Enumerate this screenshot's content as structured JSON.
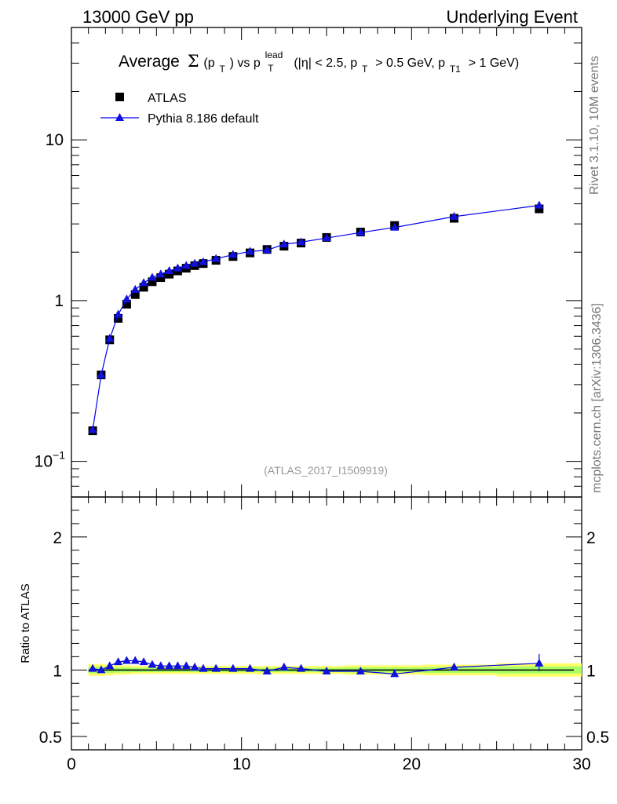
{
  "header": {
    "left": "13000 GeV pp",
    "right": "Underlying Event"
  },
  "side_labels": {
    "rivet": "Rivet 3.1.10,  10M events",
    "mcplots": "mcplots.cern.ch [arXiv:1306.3436]"
  },
  "title_parts": {
    "average": "Average",
    "sigma": "Σ",
    "pt": "(p",
    "t": "T",
    "vs": ") vs p",
    "lead": "lead",
    "lead_t": "T",
    "cuts_a": "(|η| < 2.5, p",
    "cuts_t": "T",
    "cuts_b": "> 0.5 GeV, p",
    "cuts_t1": "T1",
    "cuts_c": "> 1 GeV)"
  },
  "watermark": "(ATLAS_2017_I1509919)",
  "colors": {
    "data": "#000000",
    "mc": "#0000ee",
    "mc_marker": "#1111dd",
    "band_outer": "#ffff66",
    "band_inner": "#aaff66",
    "ratio_ref": "#009900",
    "side_text": "#777777"
  },
  "chart_data": {
    "type": "scatter",
    "title": "Average Σ(pT) vs pT lead (|η| < 2.5, pT > 0.5 GeV, pT1 > 1 GeV)",
    "xlabel": "",
    "ylabel": "",
    "ratio_ylabel": "Ratio to ATLAS",
    "xlim": [
      0,
      30
    ],
    "ylim": [
      0.06,
      50
    ],
    "ylog": true,
    "ratio_ylim": [
      0.4,
      2.3
    ],
    "x_ticks": [
      "0",
      "10",
      "20",
      "30"
    ],
    "y_ticks": [
      {
        "value": 0.1,
        "label": "10",
        "sup": "−1"
      },
      {
        "value": 1,
        "label": "1",
        "sup": ""
      },
      {
        "value": 10,
        "label": "10",
        "sup": ""
      }
    ],
    "ratio_ticks": [
      {
        "value": 0.5,
        "label": "0.5"
      },
      {
        "value": 1,
        "label": "1"
      },
      {
        "value": 2,
        "label": "2"
      }
    ],
    "legend": {
      "position": "top-left"
    },
    "x": [
      1.25,
      1.75,
      2.25,
      2.75,
      3.25,
      3.75,
      4.25,
      4.75,
      5.25,
      5.75,
      6.25,
      6.75,
      7.25,
      7.75,
      8.5,
      9.5,
      10.5,
      11.5,
      12.5,
      13.5,
      15.0,
      17.0,
      19.0,
      22.5,
      27.5
    ],
    "series": [
      {
        "name": "ATLAS",
        "marker": "square",
        "values": [
          0.155,
          0.345,
          0.57,
          0.775,
          0.95,
          1.09,
          1.21,
          1.31,
          1.39,
          1.46,
          1.53,
          1.59,
          1.65,
          1.7,
          1.78,
          1.88,
          1.98,
          2.08,
          2.18,
          2.28,
          2.47,
          2.67,
          2.93,
          3.25,
          3.72
        ],
        "ratio_band": [
          0.045,
          0.045,
          0.04,
          0.035,
          0.035,
          0.03,
          0.03,
          0.03,
          0.03,
          0.03,
          0.03,
          0.03,
          0.03,
          0.03,
          0.03,
          0.03,
          0.03,
          0.03,
          0.03,
          0.03,
          0.03,
          0.035,
          0.035,
          0.04,
          0.05
        ]
      },
      {
        "name": "Pythia 8.186 default",
        "marker": "triangle",
        "values": [
          0.157,
          0.345,
          0.58,
          0.82,
          1.02,
          1.17,
          1.29,
          1.39,
          1.46,
          1.53,
          1.59,
          1.65,
          1.7,
          1.74,
          1.82,
          1.93,
          2.02,
          2.06,
          2.24,
          2.31,
          2.45,
          2.65,
          2.85,
          3.33,
          3.91
        ],
        "ratio": [
          1.01,
          1.0,
          1.03,
          1.06,
          1.07,
          1.07,
          1.06,
          1.04,
          1.03,
          1.03,
          1.03,
          1.03,
          1.02,
          1.01,
          1.01,
          1.01,
          1.01,
          0.99,
          1.02,
          1.01,
          0.99,
          0.99,
          0.97,
          1.02,
          1.05
        ]
      }
    ]
  }
}
